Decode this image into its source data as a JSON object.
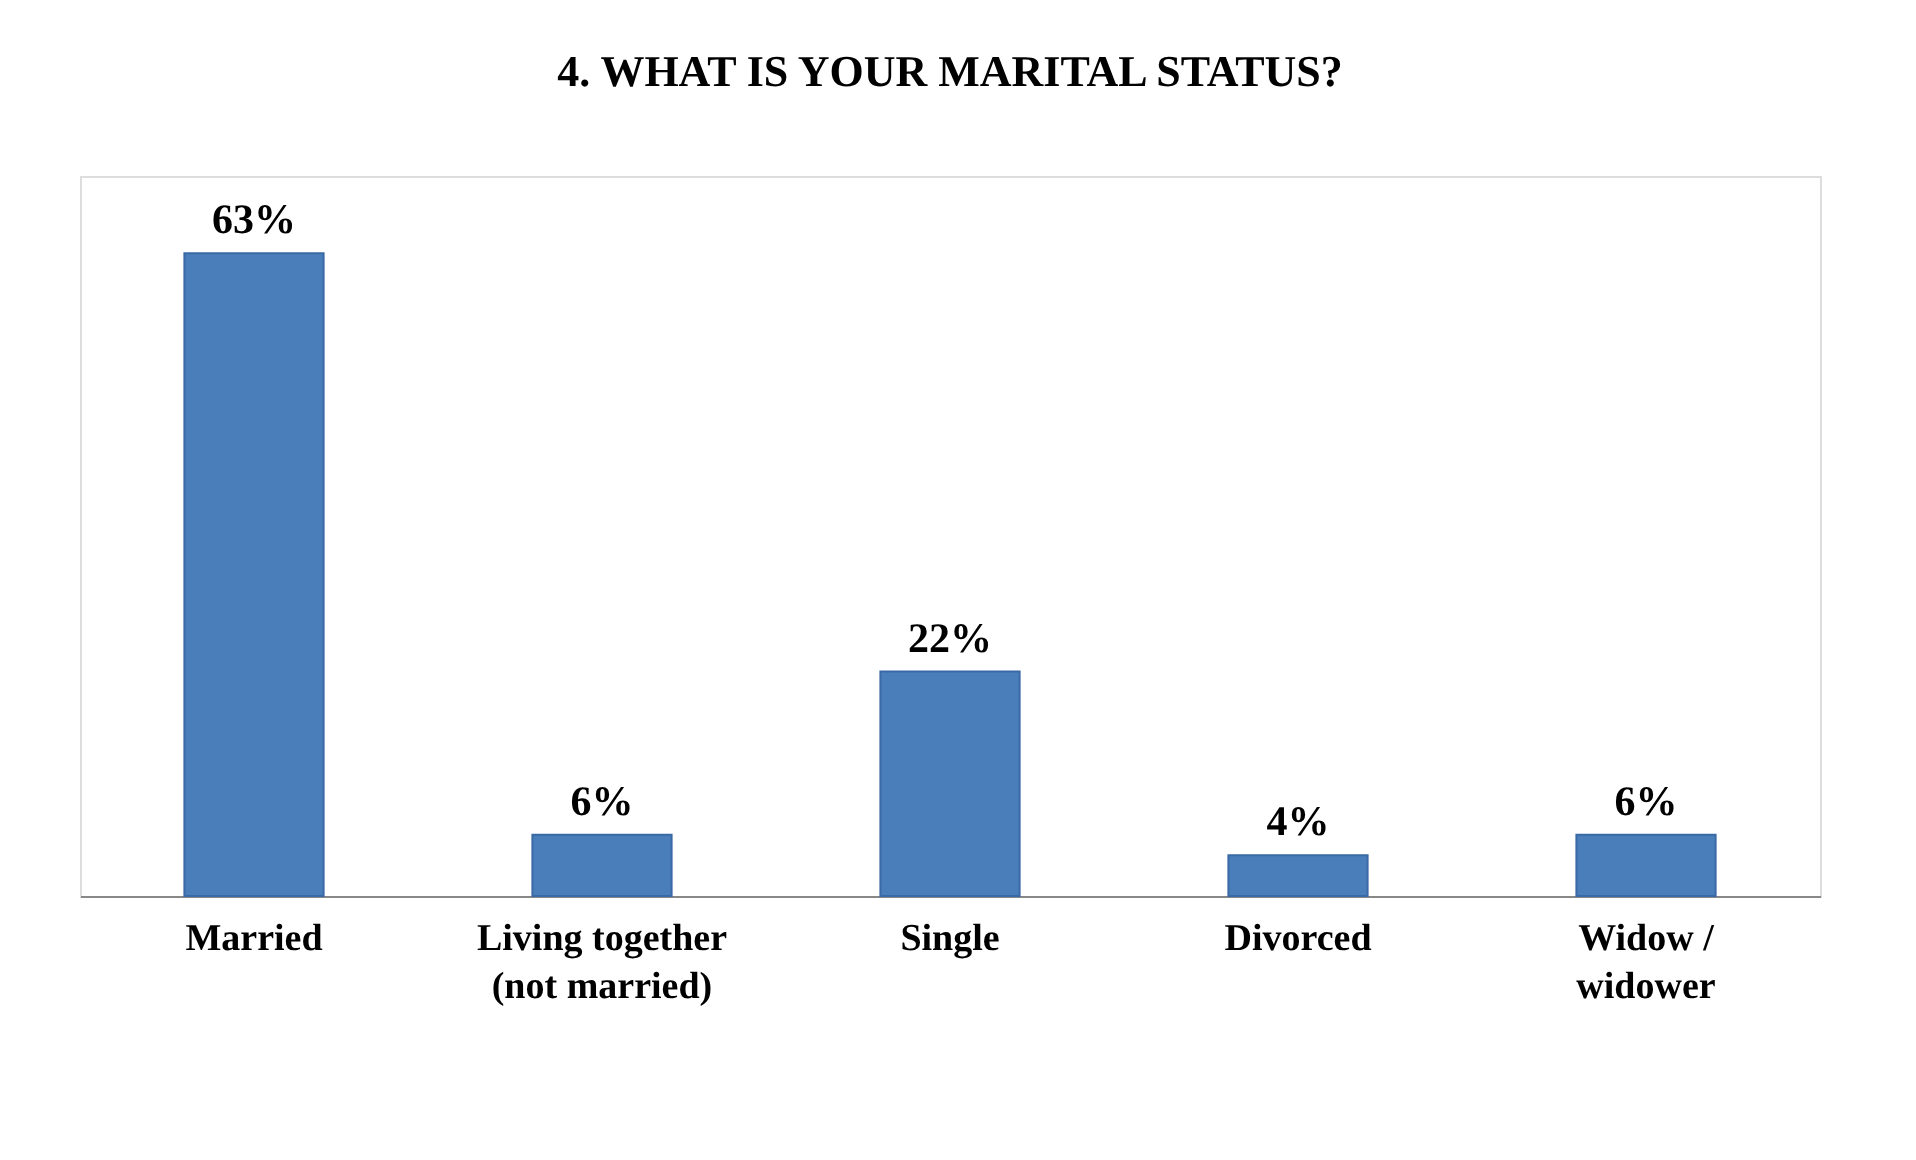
{
  "chart_data": {
    "type": "bar",
    "title": "4. WHAT IS YOUR MARITAL STATUS?",
    "categories": [
      "Married",
      "Living together\n(not married)",
      "Single",
      "Divorced",
      "Widow /\nwidower"
    ],
    "values": [
      63,
      6,
      22,
      4,
      6
    ],
    "value_labels": [
      "63%",
      "6%",
      "22%",
      "4%",
      "6%"
    ],
    "color": "#4a7ebb"
  }
}
